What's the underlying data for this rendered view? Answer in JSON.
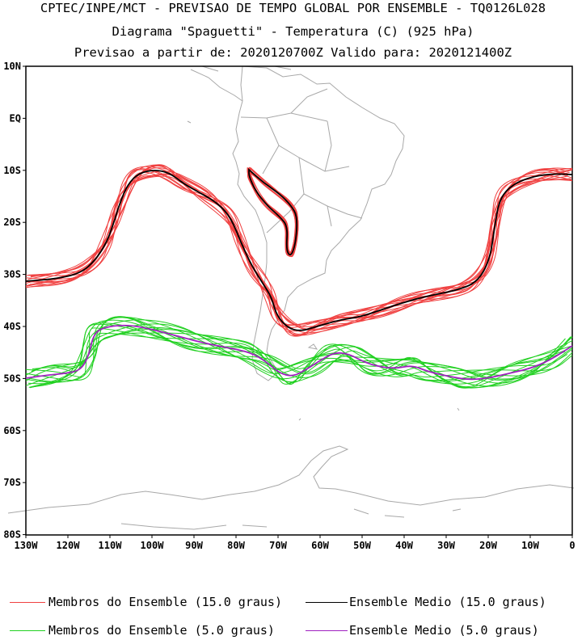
{
  "header": {
    "line1": "CPTEC/INPE/MCT - PREVISAO DE TEMPO GLOBAL POR ENSEMBLE - TQ0126L028",
    "line2": "Diagrama \"Spaguetti\" - Temperatura (C) (925 hPa)",
    "line3": "Previsao a partir de: 2020120700Z  Valido para: 2020121400Z"
  },
  "axes": {
    "lat_labels": [
      "10N",
      "EQ",
      "10S",
      "20S",
      "30S",
      "40S",
      "50S",
      "60S",
      "70S",
      "80S"
    ],
    "lon_labels": [
      "130W",
      "120W",
      "110W",
      "100W",
      "90W",
      "80W",
      "70W",
      "60W",
      "50W",
      "40W",
      "30W",
      "20W",
      "10W",
      "0"
    ]
  },
  "legend": {
    "members_15_label": "Membros do Ensemble (15.0 graus)",
    "mean_15_label": "Ensemble Medio (15.0 graus)",
    "members_5_label": "Membros do Ensemble (5.0 graus)",
    "mean_5_label": "Ensemble Medio (5.0 graus)"
  },
  "colors": {
    "members_15": "#f04040",
    "mean_15": "#000000",
    "members_5": "#20d020",
    "mean_5": "#a020c0",
    "coast": "#a8a8a8"
  }
}
